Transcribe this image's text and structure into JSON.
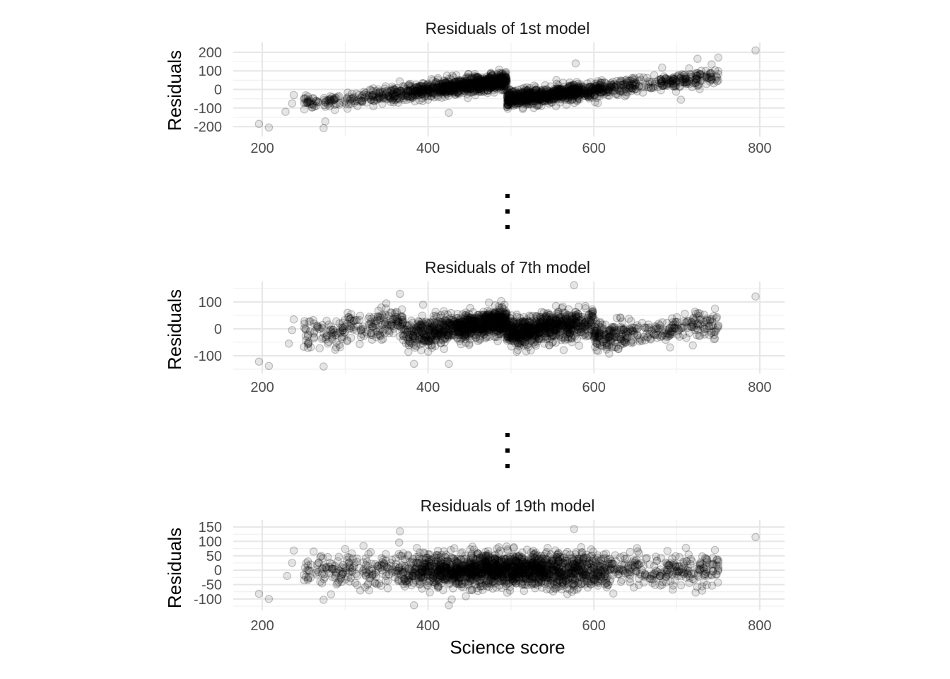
{
  "chart_data": [
    {
      "type": "scatter",
      "title": "Residuals of 1st model",
      "xlabel": "",
      "ylabel": "Residuals",
      "xlim": [
        165,
        830
      ],
      "ylim": [
        -230,
        230
      ],
      "x_ticks": [
        200,
        400,
        600,
        800
      ],
      "y_ticks": [
        -200,
        -100,
        0,
        100,
        200
      ],
      "grid": true,
      "pattern": "sawtooth with break at x=495; y rises ~0.5 per unit within each segment",
      "points": [
        [
          196,
          -185
        ],
        [
          208,
          -204
        ],
        [
          228,
          -120
        ],
        [
          236,
          -75
        ],
        [
          238,
          -30
        ],
        [
          274,
          -208
        ],
        [
          276,
          -172
        ],
        [
          425,
          -125
        ],
        [
          578,
          140
        ],
        [
          795,
          210
        ],
        [
          725,
          165
        ],
        [
          742,
          135
        ],
        [
          750,
          172
        ],
        [
          705,
          -55
        ],
        [
          735,
          100
        ]
      ]
    },
    {
      "type": "scatter",
      "title": "Residuals of 7th model",
      "xlabel": "",
      "ylabel": "Residuals",
      "xlim": [
        165,
        830
      ],
      "ylim": [
        -150,
        160
      ],
      "x_ticks": [
        200,
        400,
        600,
        800
      ],
      "y_ticks": [
        -100,
        0,
        100
      ],
      "grid": true,
      "pattern": "sawtooth with breaks at x=370, 495, 600",
      "points": [
        [
          196,
          -122
        ],
        [
          208,
          -138
        ],
        [
          232,
          -55
        ],
        [
          236,
          -5
        ],
        [
          238,
          35
        ],
        [
          274,
          -140
        ],
        [
          366,
          130
        ],
        [
          383,
          -130
        ],
        [
          425,
          -130
        ],
        [
          576,
          162
        ],
        [
          795,
          120
        ],
        [
          733,
          25
        ],
        [
          740,
          30
        ],
        [
          746,
          75
        ]
      ]
    },
    {
      "type": "scatter",
      "title": "Residuals of 19th model",
      "xlabel": "Science score",
      "ylabel": "Residuals",
      "xlim": [
        165,
        830
      ],
      "ylim": [
        -125,
        160
      ],
      "x_ticks": [
        200,
        400,
        600,
        800
      ],
      "y_ticks": [
        -100,
        -50,
        0,
        50,
        100,
        150
      ],
      "grid": true,
      "pattern": "homoscedastic band with small breaks",
      "points": [
        [
          196,
          -82
        ],
        [
          208,
          -100
        ],
        [
          230,
          -20
        ],
        [
          236,
          25
        ],
        [
          238,
          68
        ],
        [
          274,
          -103
        ],
        [
          366,
          135
        ],
        [
          383,
          -122
        ],
        [
          425,
          -122
        ],
        [
          576,
          143
        ],
        [
          795,
          115
        ],
        [
          735,
          40
        ],
        [
          740,
          20
        ],
        [
          746,
          70
        ]
      ]
    }
  ]
}
